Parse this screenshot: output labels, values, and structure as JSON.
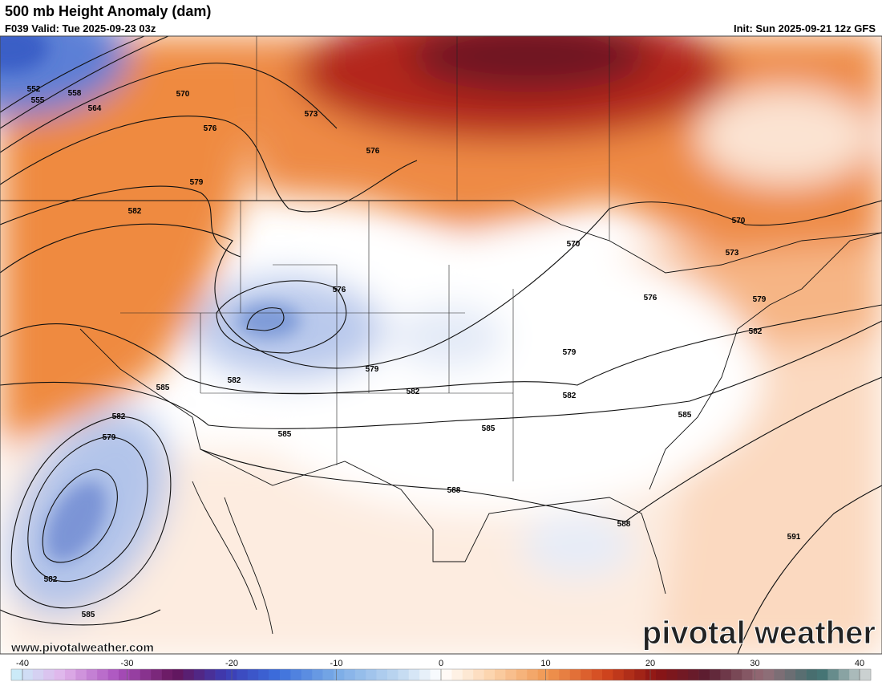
{
  "header": {
    "title": "500 mb Height Anomaly (dam)",
    "valid": "F039 Valid: Tue 2025-09-23 03z",
    "init": "Init: Sun 2025-09-21 12z GFS"
  },
  "map": {
    "contour_labels": [
      552,
      555,
      558,
      564,
      570,
      573,
      576,
      576,
      579,
      582,
      570,
      570,
      573,
      576,
      576,
      579,
      582,
      579,
      579,
      582,
      585,
      582,
      582,
      585,
      582,
      585,
      579,
      585,
      588,
      588,
      591,
      582,
      585
    ]
  },
  "footer": {
    "website": "www.pivotalweather.com",
    "logo": "pivotal weather"
  },
  "colorbar": {
    "lim": [
      -40,
      40
    ],
    "ticks": [
      -40,
      -30,
      -20,
      -10,
      0,
      10,
      20,
      30,
      40
    ]
  }
}
